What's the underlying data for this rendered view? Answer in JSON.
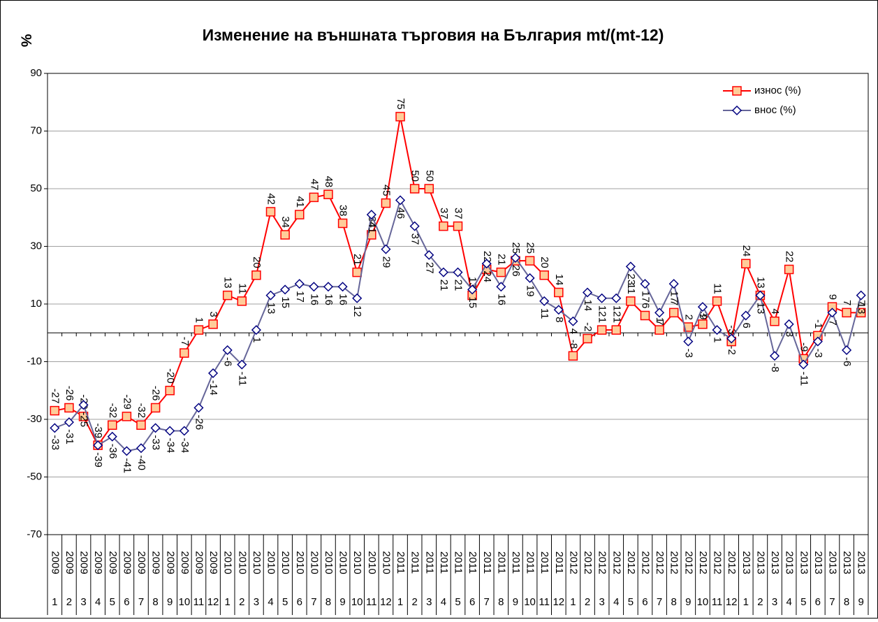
{
  "chart_data": {
    "type": "line",
    "title": "Изменение на външната търговия на България mt/(mt-12)",
    "y_label": "%",
    "categories": [
      "1",
      "2",
      "3",
      "4",
      "5",
      "6",
      "7",
      "8",
      "9",
      "10",
      "11",
      "12",
      "1",
      "2",
      "3",
      "4",
      "5",
      "6",
      "7",
      "8",
      "9",
      "10",
      "11",
      "12",
      "1",
      "2",
      "3",
      "4",
      "5",
      "6",
      "7",
      "8",
      "9",
      "10",
      "11",
      "12",
      "1",
      "2",
      "3",
      "4",
      "5",
      "6",
      "7",
      "8",
      "9",
      "10",
      "11",
      "12",
      "1",
      "2",
      "3",
      "4",
      "5",
      "6",
      "7",
      "8",
      "9"
    ],
    "category_years": [
      "2009",
      "2009",
      "2009",
      "2009",
      "2009",
      "2009",
      "2009",
      "2009",
      "2009",
      "2009",
      "2009",
      "2009",
      "2010",
      "2010",
      "2010",
      "2010",
      "2010",
      "2010",
      "2010",
      "2010",
      "2010",
      "2010",
      "2010",
      "2010",
      "2011",
      "2011",
      "2011",
      "2011",
      "2011",
      "2011",
      "2011",
      "2011",
      "2011",
      "2011",
      "2011",
      "2011",
      "2012",
      "2012",
      "2012",
      "2012",
      "2012",
      "2012",
      "2012",
      "2012",
      "2012",
      "2012",
      "2012",
      "2012",
      "2013",
      "2013",
      "2013",
      "2013",
      "2013",
      "2013",
      "2013",
      "2013",
      "2013"
    ],
    "series": [
      {
        "name": "износ (%)",
        "color": "#ff0000",
        "marker_fill": "#ffcc99",
        "marker": "square",
        "values": [
          -27,
          -26,
          -29,
          -39,
          -32,
          -29,
          -32,
          -26,
          -20,
          -7,
          1,
          3,
          13,
          11,
          20,
          42,
          34,
          41,
          47,
          48,
          38,
          21,
          34,
          45,
          75,
          50,
          50,
          37,
          37,
          13,
          22,
          21,
          25,
          25,
          20,
          14,
          -8,
          -2,
          1,
          1,
          11,
          6,
          1,
          7,
          2,
          3,
          11,
          -3,
          24,
          13,
          4,
          22,
          -9,
          -1,
          9,
          7,
          7
        ]
      },
      {
        "name": "внос (%)",
        "color": "#666699",
        "marker_fill": "#ffffff",
        "marker_stroke": "#000080",
        "marker": "diamond",
        "values": [
          -33,
          -31,
          -25,
          -39,
          -36,
          -41,
          -40,
          -33,
          -34,
          -34,
          -26,
          -14,
          -6,
          -11,
          1,
          13,
          15,
          17,
          16,
          16,
          16,
          12,
          41,
          29,
          46,
          37,
          27,
          21,
          21,
          15,
          24,
          16,
          26,
          19,
          11,
          8,
          4,
          14,
          12,
          12,
          23,
          17,
          7,
          17,
          -3,
          9,
          1,
          -2,
          6,
          13,
          -8,
          3,
          -11,
          -3,
          7,
          -6,
          13
        ]
      }
    ],
    "ylim": [
      -70,
      90
    ],
    "yticks": [
      -70,
      -50,
      -30,
      -10,
      10,
      30,
      50,
      70,
      90
    ],
    "grid": true,
    "legend": "upper right"
  }
}
